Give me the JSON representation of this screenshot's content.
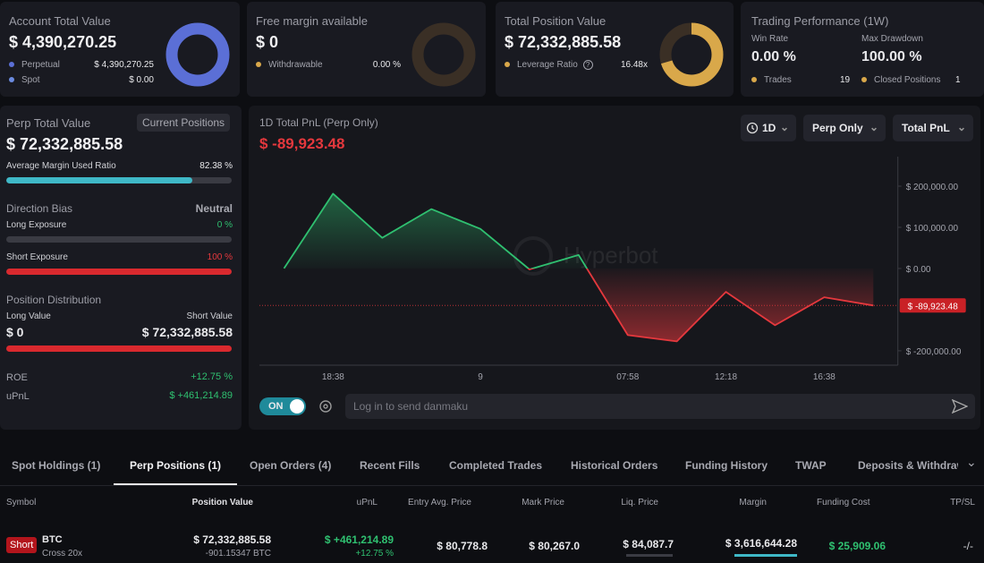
{
  "top_cards": {
    "account": {
      "title": "Account Total Value",
      "value": "$ 4,390,270.25",
      "rows": [
        {
          "label": "Perpetual",
          "value": "$ 4,390,270.25"
        },
        {
          "label": "Spot",
          "value": "$ 0.00"
        }
      ]
    },
    "free_margin": {
      "title": "Free margin available",
      "value": "$ 0",
      "rows": [
        {
          "label": "Withdrawable",
          "value": "0.00 %"
        }
      ]
    },
    "position": {
      "title": "Total Position Value",
      "value": "$ 72,332,885.58",
      "rows": [
        {
          "label": "Leverage Ratio",
          "value": "16.48x"
        }
      ]
    },
    "performance": {
      "title": "Trading Performance (1W)",
      "stats": [
        {
          "label": "Win Rate",
          "value": "0.00 %"
        },
        {
          "label": "Max Drawdown",
          "value": "100.00 %"
        }
      ],
      "rows": [
        {
          "label": "Trades",
          "value": "19"
        },
        {
          "label": "Closed Positions",
          "value": "1"
        }
      ]
    }
  },
  "perp_panel": {
    "title": "Perp Total Value",
    "button": "Current Positions",
    "value": "$ 72,332,885.58",
    "margin": {
      "label": "Average Margin Used Ratio",
      "value": 82.38,
      "value_label": "82.38 %"
    },
    "direction": {
      "label": "Direction Bias",
      "value": "Neutral"
    },
    "long_exposure": {
      "label": "Long Exposure",
      "value": 0,
      "value_label": "0 %"
    },
    "short_exposure": {
      "label": "Short Exposure",
      "value": 100,
      "value_label": "100 %"
    },
    "distribution": {
      "title": "Position Distribution",
      "long_label": "Long Value",
      "long_value": "$ 0",
      "short_label": "Short Value",
      "short_value": "$ 72,332,885.58"
    },
    "roe": {
      "label": "ROE",
      "value": "+12.75 %"
    },
    "upnl": {
      "label": "uPnL",
      "value": "$ +461,214.89"
    }
  },
  "chart_panel": {
    "title": "1D Total PnL (Perp Only)",
    "value": "$ -89,923.48",
    "controls": [
      "1D",
      "Perp Only",
      "Total PnL"
    ],
    "watermark": "Hyperbot",
    "toggle": "ON",
    "danmaku_placeholder": "Log in to send danmaku",
    "chart_data": {
      "type": "line",
      "categories": [
        null,
        "18:38",
        null,
        null,
        "9",
        null,
        null,
        "07:58",
        null,
        "12:18",
        null,
        "16:38",
        null
      ],
      "values": [
        0,
        181600,
        74400,
        144400,
        96300,
        -2200,
        32800,
        -161900,
        -177200,
        -56900,
        -137900,
        -70000,
        -89923.48
      ],
      "ylim": [
        -235000,
        250000
      ],
      "yticks": [
        {
          "value": -200000,
          "label": "$ -200,000.00"
        },
        {
          "value": 0,
          "label": "$ 0.00"
        },
        {
          "value": 100000,
          "label": "$ 100,000.00"
        },
        {
          "value": 200000,
          "label": "$ 200,000.00"
        }
      ],
      "colors": {
        "up": "#2fc070",
        "down": "#e5383d"
      }
    }
  },
  "tabs": [
    "Spot Holdings (1)",
    "Perp Positions (1)",
    "Open Orders (4)",
    "Recent Fills",
    "Completed Trades",
    "Historical Orders",
    "Funding History",
    "TWAP",
    "Deposits & Withdraw"
  ],
  "active_tab": 1,
  "table": {
    "columns": [
      "Symbol",
      "Position Value",
      "uPnL",
      "Entry Avg. Price",
      "Mark Price",
      "Liq. Price",
      "Margin",
      "Funding Cost",
      "TP/SL"
    ],
    "rows": [
      {
        "side": "Short",
        "symbol": "BTC",
        "margin_mode": "Cross 20x",
        "position_value": "$ 72,332,885.58",
        "position_size": "-901.15347 BTC",
        "upnl": "$ +461,214.89",
        "upnl_pct": "+12.75 %",
        "entry_price": "$ 80,778.8",
        "mark_price": "$ 80,267.0",
        "liq_price": "$ 84,087.7",
        "margin": "$ 3,616,644.28",
        "funding_cost": "$ 25,909.06",
        "tpsl": "-/-"
      }
    ]
  }
}
